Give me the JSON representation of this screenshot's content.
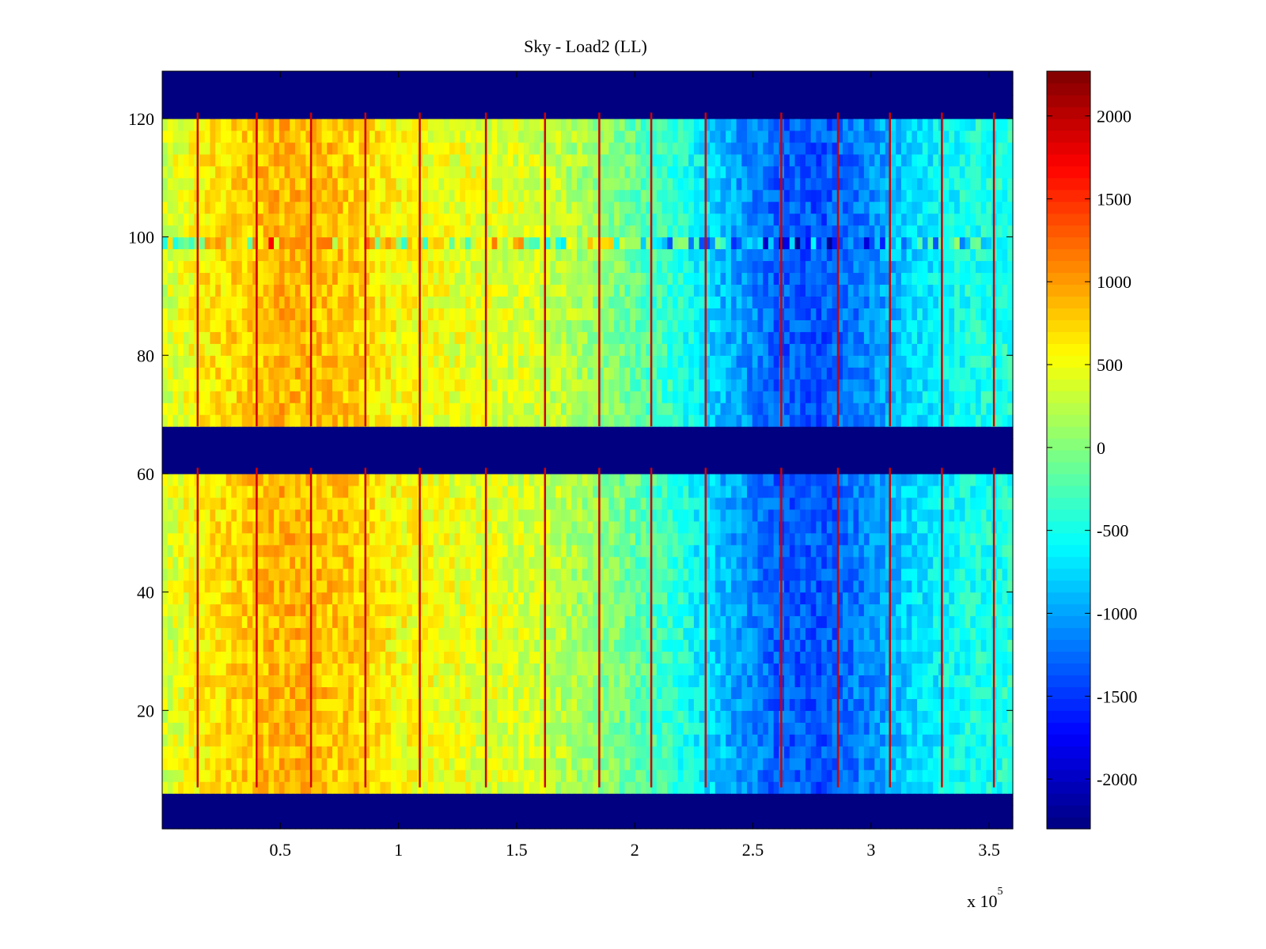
{
  "chart_data": {
    "type": "heatmap",
    "title": "Sky - Load2 (LL)",
    "xlabel": "",
    "ylabel": "",
    "x_multiplier_label": "x 10",
    "x_multiplier_exponent": "5",
    "xlim": [
      0,
      360000
    ],
    "ylim": [
      0,
      128
    ],
    "x_ticks": [
      50000,
      100000,
      150000,
      200000,
      250000,
      300000,
      350000
    ],
    "x_tick_labels": [
      "0.5",
      "1",
      "1.5",
      "2",
      "2.5",
      "3",
      "3.5"
    ],
    "y_ticks": [
      20,
      40,
      60,
      80,
      100,
      120
    ],
    "y_tick_labels": [
      "20",
      "40",
      "60",
      "80",
      "100",
      "120"
    ],
    "colorbar": {
      "colormap": "jet",
      "range": [
        -2300,
        2270
      ],
      "ticks": [
        -2000,
        -1500,
        -1000,
        -500,
        0,
        500,
        1000,
        1500,
        2000
      ],
      "tick_labels": [
        "-2000",
        "-1500",
        "-1000",
        "-500",
        "0",
        "500",
        "1000",
        "1500",
        "2000"
      ]
    },
    "masked_channel_ranges": [
      [
        0,
        7
      ],
      [
        61,
        68
      ],
      [
        121,
        128
      ]
    ],
    "masked_value": -2300,
    "hot_channel_band": [
      98,
      101
    ],
    "trend": {
      "x": [
        0,
        20000,
        50000,
        80000,
        100000,
        130000,
        160000,
        190000,
        220000,
        240000,
        260000,
        280000,
        300000,
        320000,
        340000,
        360000
      ],
      "mean_value": [
        350,
        650,
        900,
        800,
        550,
        450,
        350,
        0,
        -450,
        -950,
        -1300,
        -1350,
        -1100,
        -700,
        -500,
        -450
      ]
    },
    "spike_columns_x": [
      15000,
      40000,
      63000,
      86000,
      109000,
      137000,
      162000,
      185000,
      207000,
      230000,
      262000,
      286000,
      308000,
      330000,
      352000
    ],
    "spike_value": 1900,
    "grid": false,
    "legend": "none"
  }
}
